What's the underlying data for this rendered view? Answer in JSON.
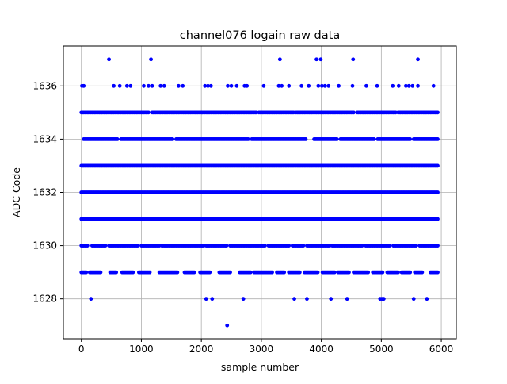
{
  "chart_data": {
    "type": "scatter",
    "title": "channel076 logain raw data",
    "xlabel": "sample number",
    "ylabel": "ADC Code",
    "xlim": [
      -300,
      6250
    ],
    "ylim": [
      1626.5,
      1637.5
    ],
    "xticks": [
      0,
      1000,
      2000,
      3000,
      4000,
      5000,
      6000
    ],
    "yticks": [
      1628,
      1630,
      1632,
      1634,
      1636
    ],
    "xtick_labels": [
      "0",
      "1000",
      "2000",
      "3000",
      "4000",
      "5000",
      "6000"
    ],
    "ytick_labels": [
      "1628",
      "1630",
      "1632",
      "1634",
      "1636"
    ],
    "grid": true,
    "marker_color": "#0000ff",
    "series": [
      {
        "points": [
          [
            460,
            1637
          ],
          [
            1160,
            1637
          ],
          [
            3310,
            1637
          ],
          [
            3920,
            1637
          ],
          [
            3990,
            1637
          ],
          [
            4530,
            1637
          ],
          [
            5610,
            1637
          ],
          [
            10,
            1636
          ],
          [
            40,
            1636
          ],
          [
            540,
            1636
          ],
          [
            640,
            1636
          ],
          [
            760,
            1636
          ],
          [
            820,
            1636
          ],
          [
            1040,
            1636
          ],
          [
            1120,
            1636
          ],
          [
            1180,
            1636
          ],
          [
            1320,
            1636
          ],
          [
            1380,
            1636
          ],
          [
            1620,
            1636
          ],
          [
            1690,
            1636
          ],
          [
            2060,
            1636
          ],
          [
            2110,
            1636
          ],
          [
            2160,
            1636
          ],
          [
            2440,
            1636
          ],
          [
            2500,
            1636
          ],
          [
            2590,
            1636
          ],
          [
            2720,
            1636
          ],
          [
            2760,
            1636
          ],
          [
            3040,
            1636
          ],
          [
            3290,
            1636
          ],
          [
            3340,
            1636
          ],
          [
            3460,
            1636
          ],
          [
            3670,
            1636
          ],
          [
            3790,
            1636
          ],
          [
            3950,
            1636
          ],
          [
            4010,
            1636
          ],
          [
            4060,
            1636
          ],
          [
            4120,
            1636
          ],
          [
            4290,
            1636
          ],
          [
            4520,
            1636
          ],
          [
            4750,
            1636
          ],
          [
            4930,
            1636
          ],
          [
            5190,
            1636
          ],
          [
            5290,
            1636
          ],
          [
            5410,
            1636
          ],
          [
            5460,
            1636
          ],
          [
            5520,
            1636
          ],
          [
            5610,
            1636
          ],
          [
            5870,
            1636
          ],
          [
            160,
            1628
          ],
          [
            2080,
            1628
          ],
          [
            2180,
            1628
          ],
          [
            2700,
            1628
          ],
          [
            3550,
            1628
          ],
          [
            3760,
            1628
          ],
          [
            4160,
            1628
          ],
          [
            4430,
            1628
          ],
          [
            4980,
            1628
          ],
          [
            5010,
            1628
          ],
          [
            5040,
            1628
          ],
          [
            5540,
            1628
          ],
          [
            5760,
            1628
          ],
          [
            2430,
            1627
          ]
        ]
      },
      {
        "dense_levels": [
          1635,
          1634,
          1633,
          1632,
          1631,
          1630,
          1629
        ],
        "x_range": [
          0,
          5940
        ],
        "gaps": {
          "1635": [
            [
              1140,
              1160
            ],
            [
              2930,
              2950
            ],
            [
              3550,
              3570
            ],
            [
              4560,
              4580
            ],
            [
              5250,
              5270
            ]
          ],
          "1634": [
            [
              0,
              30
            ],
            [
              620,
              640
            ],
            [
              1540,
              1560
            ],
            [
              2800,
              2820
            ],
            [
              3760,
              3860
            ],
            [
              4280,
              4300
            ],
            [
              4900,
              4920
            ],
            [
              5500,
              5520
            ]
          ],
          "1630": [
            [
              120,
              160
            ],
            [
              420,
              450
            ],
            [
              960,
              980
            ],
            [
              1310,
              1330
            ],
            [
              2050,
              2070
            ],
            [
              2440,
              2470
            ],
            [
              3080,
              3100
            ],
            [
              3480,
              3500
            ],
            [
              3720,
              3740
            ],
            [
              4150,
              4170
            ],
            [
              4700,
              4720
            ],
            [
              5160,
              5180
            ],
            [
              5600,
              5620
            ]
          ],
          "1629": [
            [
              100,
              130
            ],
            [
              340,
              460
            ],
            [
              600,
              660
            ],
            [
              870,
              950
            ],
            [
              1150,
              1290
            ],
            [
              1620,
              1700
            ],
            [
              1890,
              1960
            ],
            [
              2150,
              2290
            ],
            [
              2500,
              2620
            ],
            [
              2830,
              2860
            ],
            [
              3200,
              3240
            ],
            [
              3390,
              3440
            ],
            [
              3650,
              3700
            ],
            [
              3950,
              4010
            ],
            [
              4230,
              4260
            ],
            [
              4480,
              4520
            ],
            [
              4800,
              4840
            ],
            [
              5040,
              5090
            ],
            [
              5290,
              5330
            ],
            [
              5500,
              5540
            ],
            [
              5690,
              5800
            ]
          ]
        }
      }
    ]
  }
}
